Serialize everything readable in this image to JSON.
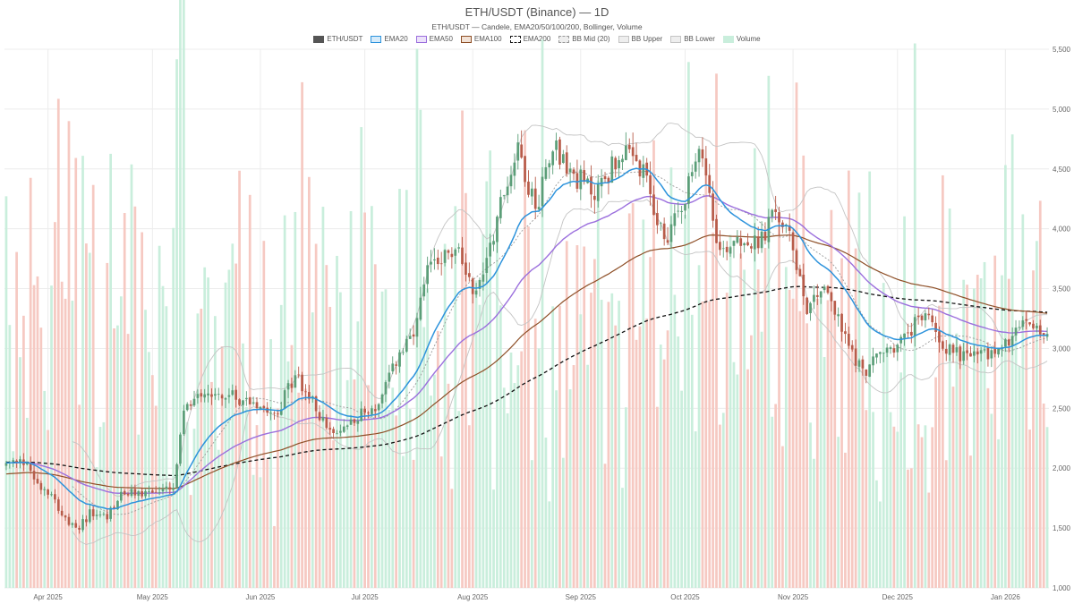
{
  "colors": {
    "up": "#5b9e78",
    "down": "#b85c4a",
    "volume_up": "#c9eedc",
    "volume_down": "#f6c9c2",
    "ema20": "#2d93dc",
    "ema50": "#9b6fdd",
    "ema100": "#8e4f27",
    "ema200": "#111111",
    "bb_mid": "#999999",
    "bb_band": "#c4c4c4",
    "grid": "#ececec"
  },
  "chart_data": {
    "type": "candlestick",
    "title": "ETH/USDT (Binance) — 1D",
    "subtitle": "ETH/USDT — Candele, EMA20/50/100/200, Bollinger, Volume",
    "legend": [
      {
        "label": "ETH/USDT",
        "style": "candles"
      },
      {
        "label": "EMA20",
        "style": "ema20"
      },
      {
        "label": "EMA50",
        "style": "ema50"
      },
      {
        "label": "EMA100",
        "style": "ema100"
      },
      {
        "label": "EMA200",
        "style": "ema200"
      },
      {
        "label": "BB Mid (20)",
        "style": "bb_mid"
      },
      {
        "label": "BB Upper",
        "style": "bb_band"
      },
      {
        "label": "BB Lower",
        "style": "bb_band"
      },
      {
        "label": "Volume",
        "style": "volume"
      }
    ],
    "legend_position": "top-center",
    "grid": true,
    "x_range": [
      "2025-03-20",
      "2026-01-13"
    ],
    "x_ticks": [
      {
        "date": "2025-04-01",
        "label": "Apr 2025"
      },
      {
        "date": "2025-05-01",
        "label": "May 2025"
      },
      {
        "date": "2025-06-01",
        "label": "Jun 2025"
      },
      {
        "date": "2025-07-01",
        "label": "Jul 2025"
      },
      {
        "date": "2025-08-01",
        "label": "Aug 2025"
      },
      {
        "date": "2025-09-01",
        "label": "Sep 2025"
      },
      {
        "date": "2025-10-01",
        "label": "Oct 2025"
      },
      {
        "date": "2025-11-01",
        "label": "Nov 2025"
      },
      {
        "date": "2025-12-01",
        "label": "Dec 2025"
      },
      {
        "date": "2026-01-01",
        "label": "Jan 2026"
      }
    ],
    "y_range": [
      1000,
      5500
    ],
    "y_ticks": [
      {
        "value": 1000,
        "label": "1,000"
      },
      {
        "value": 1500,
        "label": "1,500"
      },
      {
        "value": 2000,
        "label": "2,000"
      },
      {
        "value": 2500,
        "label": "2,500"
      },
      {
        "value": 3000,
        "label": "3,000"
      },
      {
        "value": 3500,
        "label": "3,500"
      },
      {
        "value": 4000,
        "label": "4,000"
      },
      {
        "value": 4500,
        "label": "4,500"
      },
      {
        "value": 5000,
        "label": "5,000"
      },
      {
        "value": 5500,
        "label": "5,500"
      }
    ],
    "price_path": [
      [
        "2025-03-20",
        2030
      ],
      [
        "2025-03-26",
        2050
      ],
      [
        "2025-03-29",
        1870
      ],
      [
        "2025-04-02",
        1800
      ],
      [
        "2025-04-06",
        1560
      ],
      [
        "2025-04-09",
        1480
      ],
      [
        "2025-04-13",
        1620
      ],
      [
        "2025-04-18",
        1600
      ],
      [
        "2025-04-22",
        1780
      ],
      [
        "2025-04-30",
        1800
      ],
      [
        "2025-05-07",
        1820
      ],
      [
        "2025-05-10",
        2450
      ],
      [
        "2025-05-14",
        2650
      ],
      [
        "2025-05-23",
        2600
      ],
      [
        "2025-05-30",
        2560
      ],
      [
        "2025-06-06",
        2480
      ],
      [
        "2025-06-11",
        2780
      ],
      [
        "2025-06-17",
        2500
      ],
      [
        "2025-06-22",
        2250
      ],
      [
        "2025-06-28",
        2430
      ],
      [
        "2025-07-05",
        2520
      ],
      [
        "2025-07-10",
        2900
      ],
      [
        "2025-07-15",
        3100
      ],
      [
        "2025-07-20",
        3750
      ],
      [
        "2025-07-28",
        3800
      ],
      [
        "2025-08-02",
        3450
      ],
      [
        "2025-08-09",
        4200
      ],
      [
        "2025-08-14",
        4700
      ],
      [
        "2025-08-19",
        4150
      ],
      [
        "2025-08-24",
        4750
      ],
      [
        "2025-08-28",
        4500
      ],
      [
        "2025-09-05",
        4300
      ],
      [
        "2025-09-13",
        4650
      ],
      [
        "2025-09-19",
        4450
      ],
      [
        "2025-09-25",
        3900
      ],
      [
        "2025-10-01",
        4300
      ],
      [
        "2025-10-06",
        4650
      ],
      [
        "2025-10-11",
        3800
      ],
      [
        "2025-10-16",
        3950
      ],
      [
        "2025-10-22",
        3850
      ],
      [
        "2025-10-27",
        4150
      ],
      [
        "2025-11-01",
        3850
      ],
      [
        "2025-11-05",
        3350
      ],
      [
        "2025-11-10",
        3550
      ],
      [
        "2025-11-15",
        3150
      ],
      [
        "2025-11-21",
        2800
      ],
      [
        "2025-11-26",
        2950
      ],
      [
        "2025-12-02",
        3050
      ],
      [
        "2025-12-09",
        3300
      ],
      [
        "2025-12-15",
        3000
      ],
      [
        "2025-12-20",
        2950
      ],
      [
        "2025-12-27",
        2950
      ],
      [
        "2026-01-02",
        3050
      ],
      [
        "2026-01-07",
        3250
      ],
      [
        "2026-01-13",
        3100
      ]
    ],
    "ema_seed": {
      "ema100": 1950,
      "ema200": 2050
    },
    "bollinger": {
      "period": 20,
      "std_dev": 2
    },
    "volume_scale_max": 15000000
  }
}
